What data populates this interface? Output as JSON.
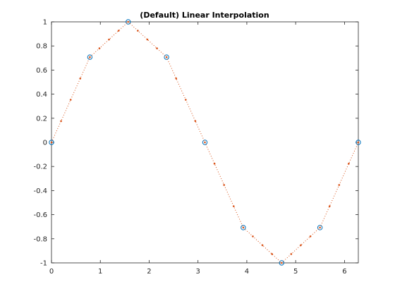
{
  "chart_data": {
    "type": "line",
    "title": "(Default) Linear Interpolation",
    "xlabel": "",
    "ylabel": "",
    "xlim": [
      0,
      6.2832
    ],
    "ylim": [
      -1,
      1
    ],
    "x_ticks": [
      0,
      1,
      2,
      3,
      4,
      5,
      6
    ],
    "x_tick_labels": [
      "0",
      "1",
      "2",
      "3",
      "4",
      "5",
      "6"
    ],
    "y_ticks": [
      1,
      0.8,
      0.6,
      0.4,
      0.2,
      0,
      -0.2,
      -0.4,
      -0.6,
      -0.8,
      -1
    ],
    "y_tick_labels": [
      "1",
      "0.8",
      "0.6",
      "0.4",
      "0.2",
      "0",
      "-0.2",
      "-0.4",
      "-0.6",
      "-0.8",
      "-1"
    ],
    "grid": false,
    "legend": "none",
    "series": [
      {
        "marker": "circle",
        "line": "none",
        "color": "#0072bd",
        "x": [
          0,
          0.7854,
          1.5708,
          2.3562,
          3.1416,
          3.927,
          4.7124,
          5.4978,
          6.2832
        ],
        "y": [
          0,
          0.7071,
          1,
          0.7071,
          0,
          -0.7071,
          -1,
          -0.7071,
          0
        ]
      },
      {
        "marker": "point",
        "line": "dotted",
        "color": "#d95319",
        "x": [
          0,
          0.1963,
          0.3927,
          0.589,
          0.7854,
          0.9817,
          1.1781,
          1.3744,
          1.5708,
          1.7671,
          1.9635,
          2.1598,
          2.3562,
          2.5525,
          2.7489,
          2.9452,
          3.1416,
          3.3379,
          3.5343,
          3.7306,
          3.927,
          4.1233,
          4.3197,
          4.516,
          4.7124,
          4.9087,
          5.1051,
          5.3014,
          5.4978,
          5.6941,
          5.8905,
          6.0868,
          6.2832
        ],
        "y": [
          0,
          0.1768,
          0.3536,
          0.5303,
          0.7071,
          0.7803,
          0.8536,
          0.9268,
          1,
          0.9268,
          0.8536,
          0.7803,
          0.7071,
          0.5303,
          0.3536,
          0.1768,
          0,
          -0.1768,
          -0.3536,
          -0.5303,
          -0.7071,
          -0.7803,
          -0.8536,
          -0.9268,
          -1,
          -0.9268,
          -0.8536,
          -0.7803,
          -0.7071,
          -0.5303,
          -0.3536,
          -0.1768,
          0
        ]
      }
    ],
    "colors": {
      "axis": "#262626",
      "background": "#ffffff"
    }
  }
}
